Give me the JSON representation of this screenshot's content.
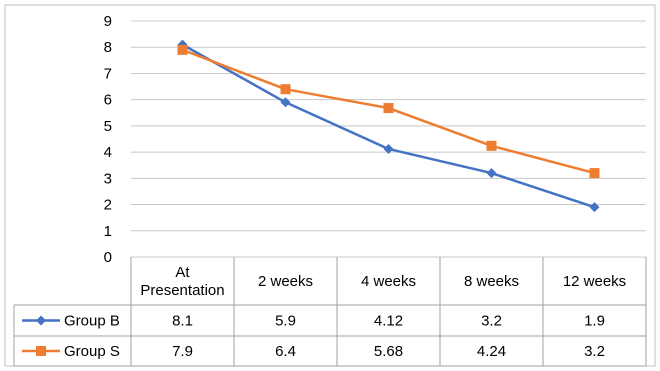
{
  "chart_data": {
    "type": "line",
    "categories": [
      "At\nPresentation",
      "2 weeks",
      "4 weeks",
      "8 weeks",
      "12 weeks"
    ],
    "series": [
      {
        "name": "Group B",
        "values": [
          8.1,
          5.9,
          4.12,
          3.2,
          1.9
        ],
        "labels": [
          "8.1",
          "5.9",
          "4.12",
          "3.2",
          "1.9"
        ],
        "color": "#4472C4",
        "marker": "diamond"
      },
      {
        "name": "Group S",
        "values": [
          7.9,
          6.4,
          5.68,
          4.24,
          3.2
        ],
        "labels": [
          "7.9",
          "6.4",
          "5.68",
          "4.24",
          "3.2"
        ],
        "color": "#ED7D31",
        "marker": "square"
      }
    ],
    "ylim": [
      0,
      9
    ],
    "yticks": [
      "0",
      "1",
      "2",
      "3",
      "4",
      "5",
      "6",
      "7",
      "8",
      "9"
    ],
    "grid": true,
    "legend": "data-table",
    "title": "",
    "xlabel": "",
    "ylabel": ""
  }
}
